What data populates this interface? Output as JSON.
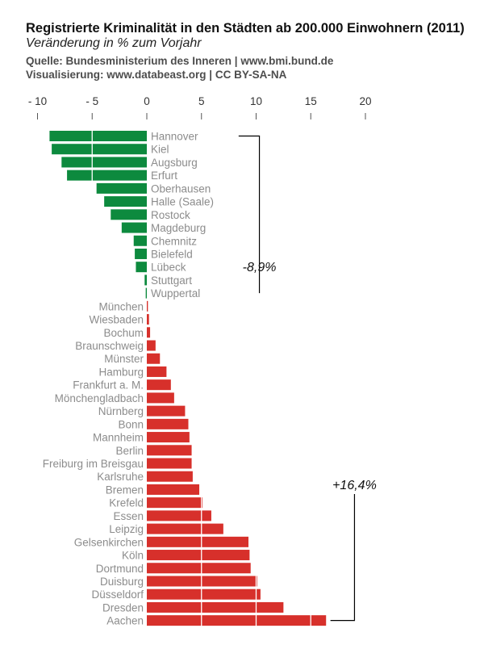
{
  "header": {
    "title": "Registrierte Kriminalität in den Städten ab 200.000 Einwohnern (2011)",
    "subtitle": "Veränderung in % zum Vorjahr",
    "source": "Quelle: Bundesministerium des Inneren | www.bmi.bund.de",
    "credit": "Visualisierung: www.databeast.org | CC BY-SA-NA"
  },
  "colors": {
    "negative": "#0d8a3e",
    "positive": "#d7302b",
    "label": "#8c8c8c",
    "axis": "#333333"
  },
  "chart_data": {
    "type": "bar",
    "orientation": "horizontal",
    "title": "Registrierte Kriminalität in den Städten ab 200.000 Einwohnern (2011)",
    "subtitle": "Veränderung in % zum Vorjahr",
    "xlim": [
      -10,
      20
    ],
    "ticks": [
      {
        "value": -10,
        "label": "- 10"
      },
      {
        "value": -5,
        "label": "- 5"
      },
      {
        "value": 0,
        "label": "0"
      },
      {
        "value": 5,
        "label": "5"
      },
      {
        "value": 10,
        "label": "10"
      },
      {
        "value": 15,
        "label": "15"
      },
      {
        "value": 20,
        "label": "20"
      }
    ],
    "grid": "vertical white lines at ticks",
    "categories": [
      "Hannover",
      "Kiel",
      "Augsburg",
      "Erfurt",
      "Oberhausen",
      "Halle (Saale)",
      "Rostock",
      "Magdeburg",
      "Chemnitz",
      "Bielefeld",
      "Lübeck",
      "Stuttgart",
      "Wuppertal",
      "München",
      "Wiesbaden",
      "Bochum",
      "Braunschweig",
      "Münster",
      "Hamburg",
      "Frankfurt a. M.",
      "Mönchengladbach",
      "Nürnberg",
      "Bonn",
      "Mannheim",
      "Berlin",
      "Freiburg im Breisgau",
      "Karlsruhe",
      "Bremen",
      "Krefeld",
      "Essen",
      "Leipzig",
      "Gelsenkirchen",
      "Köln",
      "Dortmund",
      "Duisburg",
      "Düsseldorf",
      "Dresden",
      "Aachen"
    ],
    "values": [
      -8.9,
      -8.7,
      -7.8,
      -7.3,
      -4.6,
      -3.9,
      -3.3,
      -2.3,
      -1.2,
      -1.1,
      -1.0,
      -0.2,
      -0.1,
      0.1,
      0.2,
      0.3,
      0.8,
      1.2,
      1.8,
      2.2,
      2.5,
      3.5,
      3.8,
      3.9,
      4.1,
      4.1,
      4.2,
      4.8,
      5.1,
      5.9,
      7.0,
      9.3,
      9.4,
      9.5,
      10.1,
      10.4,
      12.5,
      16.4
    ],
    "annotations": [
      {
        "text": "-8,9%",
        "bracket_from": "Hannover",
        "bracket_to": "Wuppertal"
      },
      {
        "text": "+16,4%",
        "bracket_to": "Aachen"
      }
    ]
  }
}
